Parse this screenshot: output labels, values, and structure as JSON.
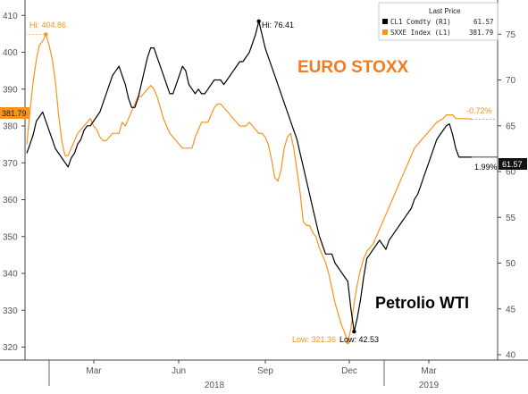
{
  "chart_data": {
    "type": "line",
    "title": "",
    "legend": {
      "title": "Last Price",
      "position": "top-right",
      "entries": [
        {
          "name": "CL1 Comdty (R1)",
          "value": "61.57",
          "color": "#000000"
        },
        {
          "name": "SXXE Index (L1)",
          "value": "381.79",
          "color": "#f7941d"
        }
      ]
    },
    "x_axis": {
      "month_labels": [
        "Mar",
        "Jun",
        "Sep",
        "Dec",
        "Mar"
      ],
      "year_labels": [
        "2018",
        "2019"
      ]
    },
    "y_left": {
      "range": [
        316,
        412
      ],
      "ticks": [
        "320",
        "330",
        "340",
        "350",
        "360",
        "370",
        "380",
        "390",
        "400",
        "410"
      ]
    },
    "y_right": {
      "range": [
        39.5,
        78.5
      ],
      "ticks": [
        "40",
        "45",
        "50",
        "55",
        "60",
        "65",
        "70",
        "75"
      ]
    },
    "grid": false,
    "series": [
      {
        "name": "SXXE Index",
        "axis": "left",
        "color": "#f7941d",
        "values": [
          375,
          384,
          392,
          398,
          402,
          403,
          404.86,
          402,
          398,
          392,
          383,
          376,
          372,
          372,
          374,
          376,
          378,
          379,
          380,
          381,
          382,
          380,
          379,
          377,
          376,
          376,
          377,
          378,
          378,
          378,
          381,
          380,
          382,
          384,
          386,
          388,
          388,
          389,
          390,
          391,
          390,
          388,
          385,
          382,
          380,
          378,
          377,
          376,
          375,
          374,
          374,
          374,
          374,
          377,
          379,
          381,
          381,
          381,
          383,
          385,
          386,
          386,
          385,
          384,
          383,
          382,
          381,
          380,
          380,
          380,
          381,
          380,
          379,
          378,
          378,
          377,
          375,
          371,
          366,
          365,
          368,
          374,
          377,
          378,
          374,
          368,
          362,
          354,
          353,
          353,
          351,
          350,
          347,
          345,
          343,
          340,
          336,
          332,
          329,
          326,
          324,
          321.36,
          325,
          332,
          337,
          341,
          344,
          346,
          347,
          348,
          350,
          352,
          354,
          356,
          358,
          360,
          362,
          364,
          366,
          368,
          370,
          372,
          374,
          375,
          376,
          377,
          378,
          379,
          380,
          381,
          381.5,
          382,
          383,
          383,
          383,
          382,
          382,
          382,
          382,
          382,
          381.79
        ]
      },
      {
        "name": "CL1 Comdty",
        "axis": "right",
        "color": "#000000",
        "values": [
          62,
          63,
          64,
          65.5,
          66,
          66.5,
          65.5,
          64.5,
          63.5,
          62.5,
          62,
          61.5,
          61,
          60.5,
          61.5,
          62,
          63,
          63.5,
          64.5,
          65,
          65,
          65.5,
          66,
          66.5,
          67.5,
          68.5,
          69.5,
          70.5,
          71,
          71.5,
          70.5,
          69.5,
          68,
          67,
          67,
          68,
          69.5,
          71,
          72.5,
          73.5,
          73.5,
          72.5,
          71.5,
          70.5,
          69.5,
          68.5,
          68.5,
          69.5,
          70.5,
          71.5,
          71,
          69.5,
          69,
          68.5,
          69,
          68.5,
          68.5,
          69,
          69.5,
          70,
          70,
          70,
          69.5,
          70,
          70.5,
          71,
          71.5,
          72,
          72,
          72.5,
          73,
          74,
          75,
          76.41,
          75,
          73.5,
          72.5,
          71.5,
          70.5,
          69.5,
          68.5,
          67.5,
          66.5,
          65.5,
          64.5,
          63.5,
          62,
          60.5,
          59,
          57.5,
          56,
          54.5,
          53,
          52,
          51,
          51,
          51,
          50,
          49.5,
          49,
          48.5,
          48,
          45,
          42.53,
          44,
          46,
          48.5,
          50.5,
          51,
          51.5,
          52,
          52.5,
          52,
          51.5,
          52.5,
          53,
          53.5,
          54,
          54.5,
          55,
          55.5,
          56,
          57,
          57.5,
          58.5,
          59.5,
          60.5,
          61.5,
          62.5,
          63.5,
          64,
          64.5,
          65,
          65.2,
          64,
          62.5,
          61.57,
          61.57,
          61.57,
          61.57,
          61.57
        ]
      }
    ],
    "annotations": {
      "sxxe_high": "Hi: 404.86",
      "sxxe_low": "Low: 321.36",
      "cl1_high": "Hi: 76.41",
      "cl1_low": "Low: 42.53",
      "sxxe_change": "-0.72%",
      "cl1_change": "1.99%",
      "sxxe_last": "381.79",
      "cl1_last": "61.57"
    },
    "overlay_labels": {
      "sxxe": "EURO STOXX",
      "cl1": "Petrolio WTI"
    },
    "colors": {
      "sxxe": "#f7941d",
      "cl1": "#000000",
      "sxxe_label": "#f47a20",
      "axis": "#444444"
    }
  }
}
